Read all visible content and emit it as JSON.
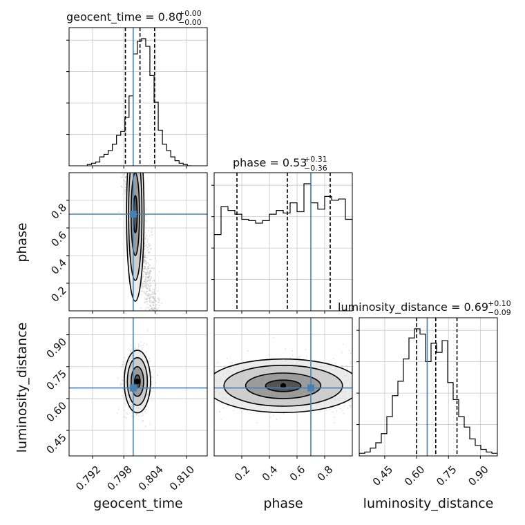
{
  "chart_data": {
    "type": "corner",
    "parameters": [
      "geocent_time",
      "phase",
      "luminosity_distance"
    ],
    "axis_labels": {
      "geocent_time": "geocent_time",
      "phase": "phase",
      "luminosity_distance": "luminosity_distance"
    },
    "ranges": {
      "geocent_time": [
        0.7875,
        0.814
      ],
      "phase": [
        0.0,
        1.0
      ],
      "luminosity_distance": [
        0.33,
        0.98
      ]
    },
    "ticks": {
      "geocent_time": {
        "values": [
          0.792,
          0.798,
          0.804,
          0.81
        ],
        "labels": [
          "0.792",
          "0.798",
          "0.804",
          "0.810"
        ]
      },
      "phase": {
        "values": [
          0.2,
          0.4,
          0.6,
          0.8
        ],
        "labels": [
          "0.2",
          "0.4",
          "0.6",
          "0.8"
        ]
      },
      "luminosity_distance": {
        "values": [
          0.45,
          0.6,
          0.75,
          0.9
        ],
        "labels": [
          "0.45",
          "0.60",
          "0.75",
          "0.90"
        ]
      }
    },
    "injected_values": {
      "geocent_time": 0.7998,
      "phase": 0.7,
      "luminosity_distance": 0.65
    },
    "titles": {
      "geocent_time": {
        "text": "geocent_time = 0.80",
        "plus": "+0.00",
        "minus": "−0.00"
      },
      "phase": {
        "text": "phase = 0.53",
        "plus": "+0.31",
        "minus": "−0.36"
      },
      "luminosity_distance": {
        "text": "luminosity_distance = 0.69",
        "plus": "+0.10",
        "minus": "−0.09"
      }
    },
    "quantiles": {
      "geocent_time": [
        0.7983,
        0.8011,
        0.8039
      ],
      "phase": [
        0.165,
        0.53,
        0.84
      ],
      "luminosity_distance": [
        0.6,
        0.69,
        0.79
      ]
    },
    "histograms": {
      "geocent_time": {
        "edges": [
          0.791,
          0.7918,
          0.7926,
          0.7934,
          0.7942,
          0.795,
          0.7958,
          0.7966,
          0.7974,
          0.7982,
          0.799,
          0.7998,
          0.8006,
          0.8014,
          0.8022,
          0.803,
          0.8038,
          0.8046,
          0.8054,
          0.8062,
          0.807,
          0.8078,
          0.8086,
          0.8094,
          0.8102,
          0.811
        ],
        "counts": [
          0.01,
          0.02,
          0.03,
          0.07,
          0.09,
          0.12,
          0.17,
          0.24,
          0.27,
          0.38,
          0.55,
          0.88,
          0.98,
          1.0,
          0.94,
          0.71,
          0.5,
          0.28,
          0.17,
          0.12,
          0.07,
          0.04,
          0.02,
          0.01,
          0.0
        ]
      },
      "phase": {
        "edges": [
          0.0,
          0.05,
          0.1,
          0.15,
          0.2,
          0.25,
          0.3,
          0.35,
          0.4,
          0.45,
          0.5,
          0.55,
          0.6,
          0.65,
          0.7,
          0.75,
          0.8,
          0.85,
          0.9,
          0.95,
          1.0
        ],
        "counts": [
          0.6,
          0.82,
          0.79,
          0.76,
          0.72,
          0.71,
          0.69,
          0.71,
          0.76,
          0.79,
          0.77,
          0.85,
          0.78,
          1.0,
          0.85,
          0.8,
          0.9,
          0.87,
          0.88,
          0.72
        ]
      },
      "luminosity_distance": {
        "edges": [
          0.33,
          0.356,
          0.382,
          0.408,
          0.434,
          0.46,
          0.486,
          0.512,
          0.538,
          0.564,
          0.59,
          0.616,
          0.642,
          0.668,
          0.694,
          0.72,
          0.746,
          0.772,
          0.798,
          0.824,
          0.85,
          0.876,
          0.902,
          0.928,
          0.954,
          0.98
        ],
        "counts": [
          0.02,
          0.03,
          0.06,
          0.1,
          0.17,
          0.3,
          0.46,
          0.57,
          0.74,
          0.9,
          0.97,
          0.93,
          0.72,
          0.86,
          0.79,
          0.88,
          0.56,
          0.43,
          0.3,
          0.22,
          0.13,
          0.08,
          0.05,
          0.03,
          0.02
        ]
      }
    },
    "joint_2d": [
      {
        "x": "geocent_time",
        "y": "phase",
        "center_x": 0.8002,
        "center_y": 0.7,
        "spread_x": 0.0008,
        "spread_y": 0.3,
        "tilt": 0.0045
      },
      {
        "x": "geocent_time",
        "y": "luminosity_distance",
        "center_x": 0.8006,
        "center_y": 0.68,
        "spread_x": 0.0012,
        "spread_y": 0.07,
        "tilt": 0.0
      },
      {
        "x": "phase",
        "y": "luminosity_distance",
        "center_x": 0.5,
        "center_y": 0.66,
        "spread_x": 0.5,
        "spread_y": 0.06,
        "tilt": 0.0
      }
    ],
    "truth_color": "#4682b4",
    "hist_color": "#000000",
    "grid": true
  }
}
